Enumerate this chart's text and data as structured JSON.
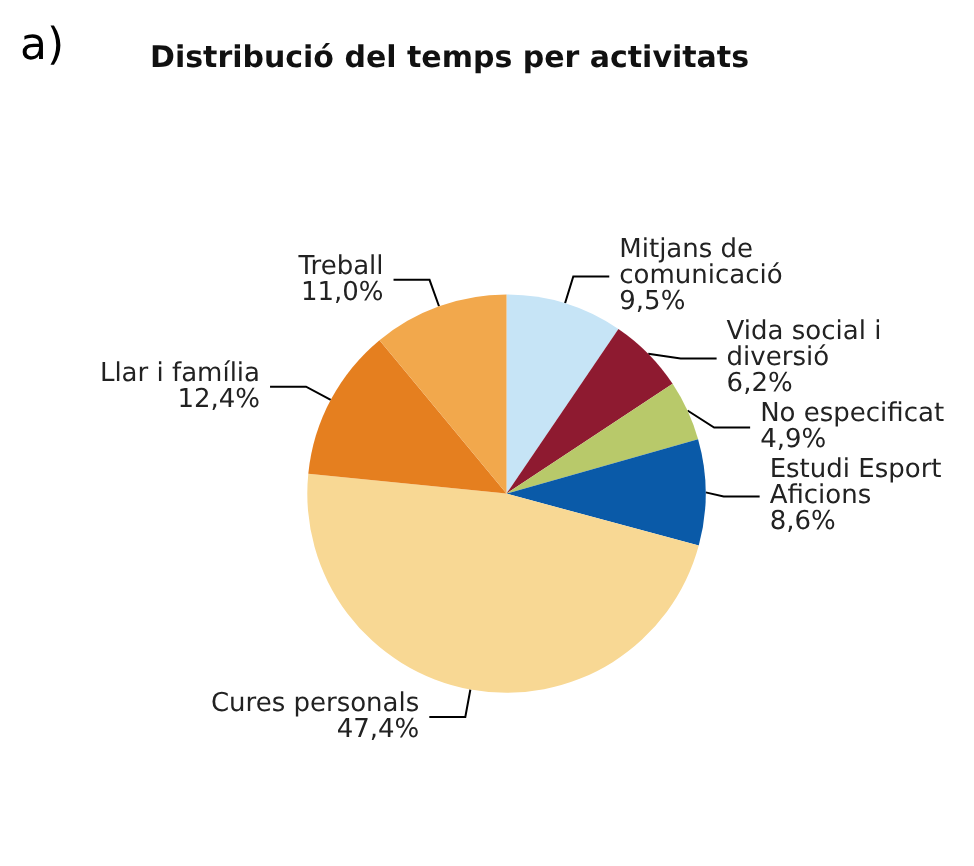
{
  "chart_data": {
    "type": "pie",
    "title": "Distribució del temps per activitats",
    "annotations": [
      "a)"
    ],
    "categories": [
      "Mitjans de comunicació",
      "Vida social i diversió",
      "No especificat",
      "Estudi Esport Aficions",
      "Cures personals",
      "Llar i família",
      "Treball"
    ],
    "values": [
      9.5,
      6.2,
      4.9,
      8.6,
      47.4,
      12.4,
      11.0
    ],
    "value_labels": [
      "9,5%",
      "6,2%",
      "4,9%",
      "8,6%",
      "47,4%",
      "12,4%",
      "11,0%"
    ],
    "colors": [
      "#c6e4f6",
      "#8e1a30",
      "#b8c96a",
      "#0a5aa8",
      "#f8d894",
      "#e57f1f",
      "#f2a84c"
    ],
    "legend": false
  }
}
